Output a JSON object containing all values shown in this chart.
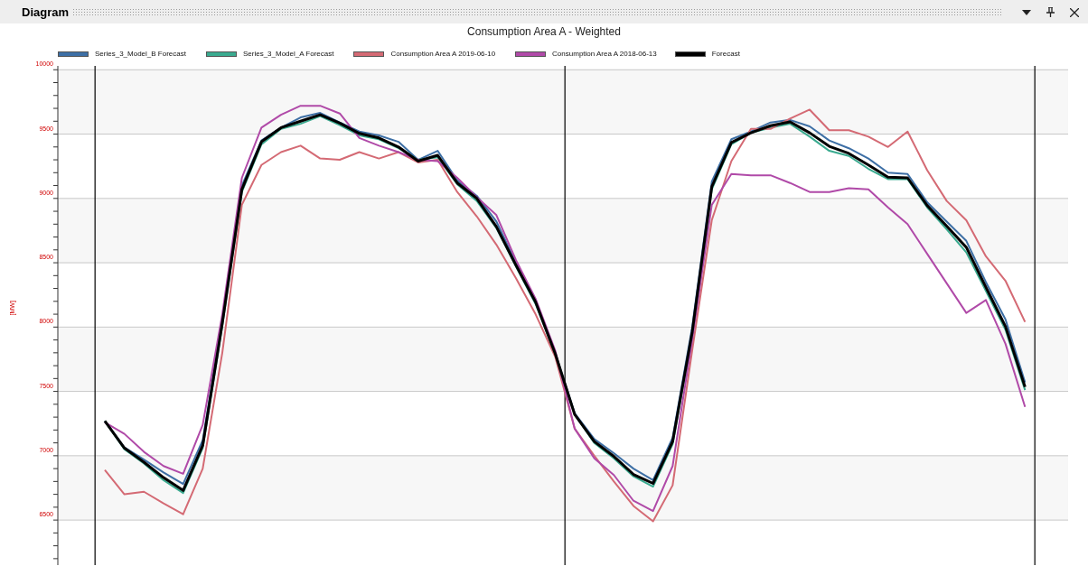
{
  "chart_data": {
    "type": "line",
    "title": "Consumption Area A - Weighted",
    "ylabel": "[MW]",
    "annotations": [
      "Diagram"
    ],
    "categories": [
      null,
      null,
      null,
      null,
      null,
      null,
      null,
      null,
      null,
      null,
      null,
      null,
      null,
      null,
      null,
      null,
      null,
      null,
      null,
      null,
      null,
      null,
      null,
      null,
      null,
      null,
      null,
      null,
      null,
      null,
      null,
      null,
      null,
      null,
      null,
      null,
      null,
      null,
      null,
      null,
      null,
      null,
      null,
      null,
      null,
      null,
      null,
      null
    ],
    "series": [
      {
        "name": "Series_3_Model_B Forecast",
        "color": "#3d6fa5",
        "values": [
          7270,
          7065,
          6970,
          6870,
          6780,
          7120,
          8050,
          9100,
          9450,
          9550,
          9630,
          9665,
          9590,
          9520,
          9490,
          9440,
          9300,
          9370,
          9140,
          9020,
          8820,
          8500,
          8210,
          7800,
          7330,
          7130,
          7020,
          6900,
          6810,
          7140,
          8000,
          9130,
          9460,
          9520,
          9590,
          9610,
          9560,
          9450,
          9390,
          9310,
          9200,
          9190,
          8970,
          8820,
          8670,
          8350,
          8060,
          7570
        ]
      },
      {
        "name": "Series_3_Model_A Forecast",
        "color": "#3aaa8f",
        "values": [
          7270,
          7050,
          6940,
          6810,
          6710,
          7060,
          8010,
          9050,
          9420,
          9540,
          9580,
          9640,
          9570,
          9490,
          9460,
          9390,
          9300,
          9320,
          9110,
          8980,
          8770,
          8470,
          8180,
          7790,
          7320,
          7100,
          6980,
          6840,
          6760,
          7090,
          7940,
          9070,
          9420,
          9510,
          9550,
          9580,
          9480,
          9370,
          9330,
          9230,
          9150,
          9150,
          8930,
          8760,
          8580,
          8280,
          7980,
          7510
        ]
      },
      {
        "name": "Consumption Area A 2019-06-10",
        "color": "#d46a74",
        "values": [
          6890,
          6700,
          6720,
          6630,
          6545,
          6900,
          7800,
          8950,
          9260,
          9360,
          9410,
          9310,
          9300,
          9360,
          9310,
          9360,
          9280,
          9300,
          9050,
          8860,
          8640,
          8380,
          8100,
          7770,
          7210,
          7000,
          6800,
          6610,
          6490,
          6770,
          7820,
          8830,
          9290,
          9540,
          9540,
          9620,
          9690,
          9530,
          9530,
          9480,
          9400,
          9520,
          9220,
          8980,
          8830,
          8550,
          8360,
          8040
        ]
      },
      {
        "name": "Consumption Area A 2018-06-13",
        "color": "#b04aa8",
        "values": [
          7260,
          7170,
          7030,
          6920,
          6860,
          7240,
          8100,
          9160,
          9550,
          9650,
          9720,
          9720,
          9660,
          9470,
          9410,
          9360,
          9300,
          9290,
          9160,
          9010,
          8870,
          8520,
          8220,
          7820,
          7210,
          6980,
          6850,
          6650,
          6570,
          6920,
          7900,
          8950,
          9190,
          9180,
          9180,
          9120,
          9050,
          9050,
          9080,
          9070,
          8930,
          8800,
          8570,
          8340,
          8110,
          8210,
          7870,
          7380
        ]
      },
      {
        "name": "Forecast",
        "color": "#000000",
        "values": [
          7270,
          7060,
          6950,
          6830,
          6730,
          7080,
          8030,
          9070,
          9440,
          9550,
          9600,
          9650,
          9585,
          9505,
          9470,
          9400,
          9290,
          9335,
          9120,
          9000,
          8780,
          8480,
          8195,
          7795,
          7320,
          7110,
          6995,
          6855,
          6785,
          7110,
          7960,
          9090,
          9435,
          9510,
          9565,
          9595,
          9510,
          9405,
          9350,
          9260,
          9165,
          9160,
          8945,
          8785,
          8620,
          8310,
          8005,
          7535
        ]
      }
    ],
    "ylim": [
      6150,
      10030
    ],
    "yticks": [
      6500,
      7000,
      7500,
      8000,
      8500,
      9000,
      9500,
      10000
    ],
    "grid": true,
    "legend": "top left",
    "tick_labels": "y",
    "marker": "none",
    "line_style": "solid"
  }
}
